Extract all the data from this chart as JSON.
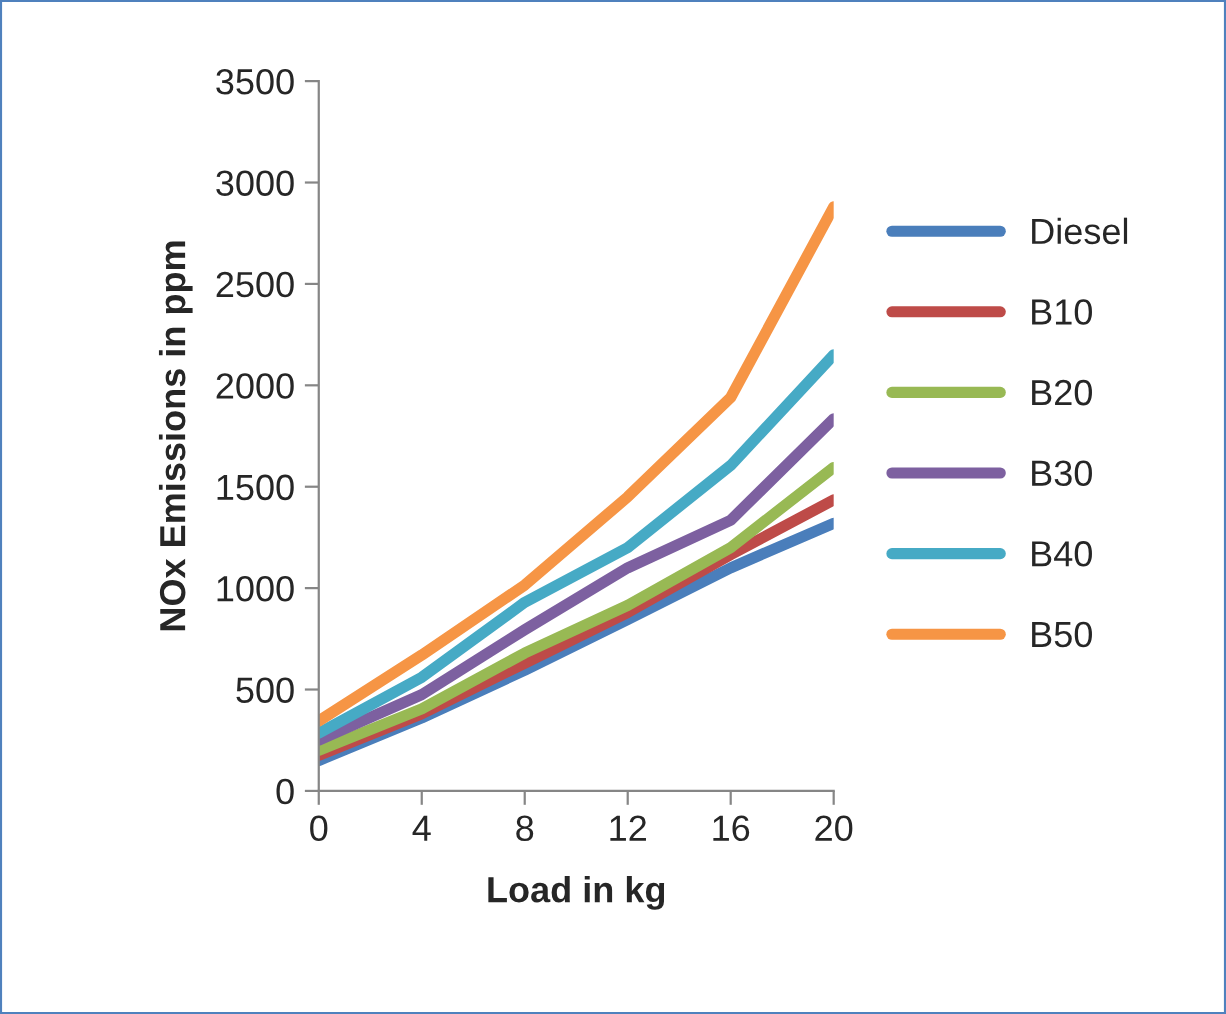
{
  "chart_data": {
    "type": "line",
    "xlabel": "Load in kg",
    "ylabel": "NOx Emissions in ppm",
    "x": [
      0,
      4,
      8,
      12,
      16,
      20
    ],
    "xlim": [
      0,
      20
    ],
    "xticks": [
      0,
      4,
      8,
      12,
      16,
      20
    ],
    "ylim": [
      0,
      3500
    ],
    "yticks": [
      0,
      500,
      1000,
      1500,
      2000,
      2500,
      3000,
      3500
    ],
    "grid": false,
    "legend": "right",
    "marker": "none",
    "line_style": "solid",
    "series": [
      {
        "name": "Diesel",
        "color": "#4a7ebb",
        "values": [
          150,
          360,
          595,
          845,
          1100,
          1320
        ]
      },
      {
        "name": "B10",
        "color": "#be4b48",
        "values": [
          175,
          380,
          630,
          880,
          1165,
          1435
        ]
      },
      {
        "name": "B20",
        "color": "#98b954",
        "values": [
          200,
          405,
          680,
          915,
          1200,
          1595
        ]
      },
      {
        "name": "B30",
        "color": "#7d60a0",
        "values": [
          250,
          475,
          795,
          1100,
          1335,
          1835
        ]
      },
      {
        "name": "B40",
        "color": "#46aac5",
        "values": [
          285,
          560,
          930,
          1200,
          1605,
          2150
        ]
      },
      {
        "name": "B50",
        "color": "#f69545",
        "values": [
          345,
          670,
          1015,
          1450,
          1940,
          2880
        ]
      }
    ]
  }
}
